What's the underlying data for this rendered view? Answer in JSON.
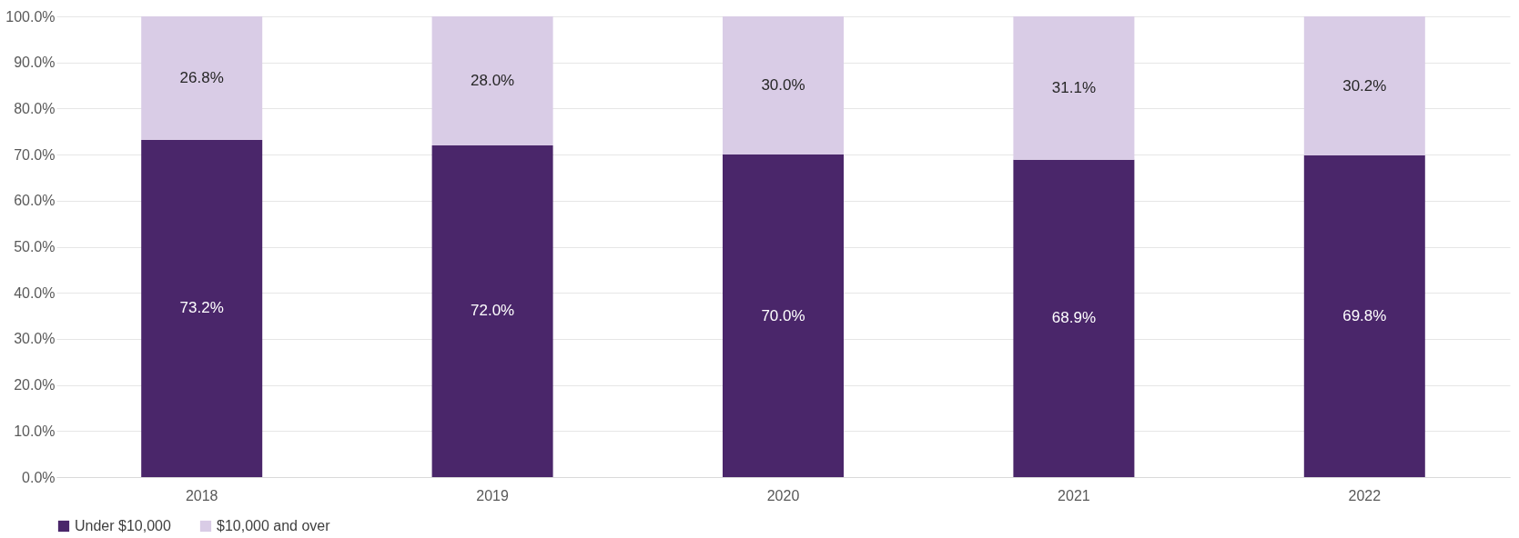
{
  "chart_data": {
    "type": "bar",
    "stacked": true,
    "categories": [
      "2018",
      "2019",
      "2020",
      "2021",
      "2022"
    ],
    "series": [
      {
        "name": "Under $10,000",
        "color": "#4a266a",
        "values": [
          73.2,
          72.0,
          70.0,
          68.9,
          69.8
        ],
        "value_labels": [
          "73.2%",
          "72.0%",
          "70.0%",
          "68.9%",
          "69.8%"
        ]
      },
      {
        "name": "$10,000 and over",
        "color": "#d9cce6",
        "values": [
          26.8,
          28.0,
          30.0,
          31.1,
          30.2
        ],
        "value_labels": [
          "26.8%",
          "28.0%",
          "30.0%",
          "31.1%",
          "30.2%"
        ]
      }
    ],
    "ylim": [
      0,
      100
    ],
    "yticks": [
      {
        "value": 0,
        "label": "0.0%"
      },
      {
        "value": 10,
        "label": "10.0%"
      },
      {
        "value": 20,
        "label": "20.0%"
      },
      {
        "value": 30,
        "label": "30.0%"
      },
      {
        "value": 40,
        "label": "40.0%"
      },
      {
        "value": 50,
        "label": "50.0%"
      },
      {
        "value": 60,
        "label": "60.0%"
      },
      {
        "value": 70,
        "label": "70.0%"
      },
      {
        "value": 80,
        "label": "80.0%"
      },
      {
        "value": 90,
        "label": "90.0%"
      },
      {
        "value": 100,
        "label": "100.0%"
      }
    ],
    "grid": "y",
    "legend": "bottom"
  }
}
